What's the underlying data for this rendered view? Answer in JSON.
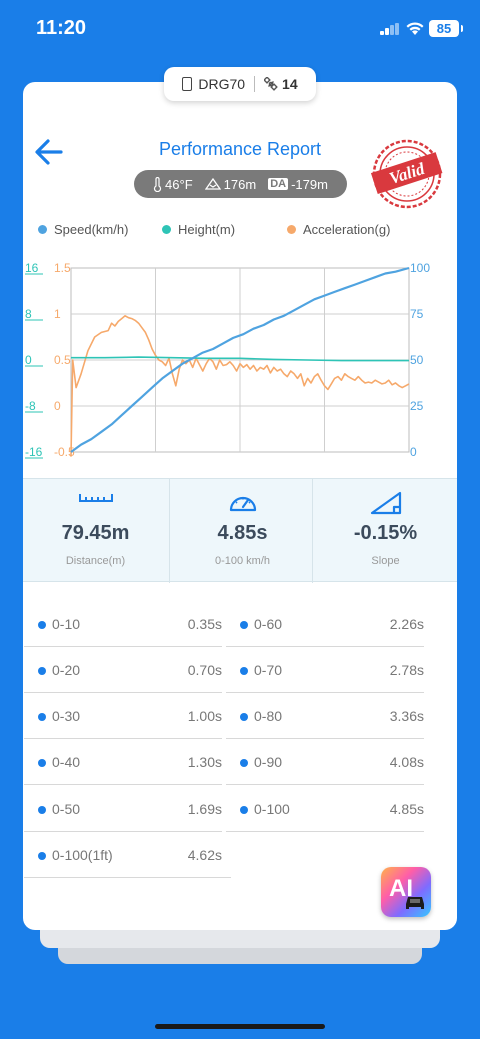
{
  "status": {
    "time": "11:20",
    "battery": "85"
  },
  "device": {
    "name": "DRG70",
    "satellites": "14"
  },
  "header": {
    "title": "Performance Report",
    "stamp_text": "Valid"
  },
  "conditions": {
    "temperature": "46°F",
    "elevation": "176m",
    "da_label": "DA",
    "density_altitude": "-179m"
  },
  "legend": [
    {
      "label": "Speed(km/h)",
      "color": "#4fa3e0"
    },
    {
      "label": "Height(m)",
      "color": "#2ec4b6"
    },
    {
      "label": "Acceleration(g)",
      "color": "#f6a96b"
    }
  ],
  "chart_data": {
    "type": "line",
    "x_grid_divisions": 4,
    "height_axis": {
      "ticks": [
        "16",
        "8",
        "0",
        "-8",
        "-16"
      ],
      "range": [
        -16,
        16
      ],
      "color": "#2ec4b6"
    },
    "accel_axis": {
      "ticks": [
        "1.5",
        "1",
        "0.5",
        "0",
        "-0.5"
      ],
      "range": [
        -0.5,
        1.5
      ],
      "color": "#f6a96b"
    },
    "speed_axis": {
      "ticks": [
        "100",
        "75",
        "50",
        "25",
        "0"
      ],
      "range": [
        0,
        100
      ],
      "color": "#4fa3e0"
    },
    "x_range": [
      0,
      100
    ],
    "series": [
      {
        "name": "Speed(km/h)",
        "axis": "speed",
        "color": "#4fa3e0",
        "points": [
          [
            0,
            0
          ],
          [
            3,
            4
          ],
          [
            6,
            7
          ],
          [
            9,
            11
          ],
          [
            12,
            15
          ],
          [
            15,
            20
          ],
          [
            18,
            25
          ],
          [
            21,
            30
          ],
          [
            24,
            35
          ],
          [
            27,
            40
          ],
          [
            30,
            44
          ],
          [
            33,
            48
          ],
          [
            36,
            51
          ],
          [
            39,
            54
          ],
          [
            42,
            56
          ],
          [
            45,
            59
          ],
          [
            48,
            62
          ],
          [
            51,
            64
          ],
          [
            54,
            67
          ],
          [
            57,
            69
          ],
          [
            60,
            72
          ],
          [
            63,
            74
          ],
          [
            66,
            77
          ],
          [
            69,
            80
          ],
          [
            72,
            83
          ],
          [
            75,
            85
          ],
          [
            78,
            87
          ],
          [
            81,
            89
          ],
          [
            84,
            91
          ],
          [
            87,
            93
          ],
          [
            90,
            95
          ],
          [
            93,
            97
          ],
          [
            96,
            98
          ],
          [
            100,
            100
          ]
        ]
      },
      {
        "name": "Height(m)",
        "axis": "height",
        "color": "#2ec4b6",
        "points": [
          [
            0,
            0.4
          ],
          [
            10,
            0.4
          ],
          [
            20,
            0.5
          ],
          [
            30,
            0.4
          ],
          [
            40,
            0.3
          ],
          [
            50,
            0.3
          ],
          [
            60,
            0.1
          ],
          [
            70,
            0
          ],
          [
            80,
            -0.1
          ],
          [
            90,
            -0.1
          ],
          [
            100,
            -0.1
          ]
        ]
      },
      {
        "name": "Acceleration(g)",
        "axis": "accel",
        "color": "#f6a96b",
        "points": [
          [
            0,
            -0.55
          ],
          [
            0.5,
            0.5
          ],
          [
            1.5,
            0.2
          ],
          [
            3,
            0.35
          ],
          [
            5,
            0.6
          ],
          [
            7,
            0.75
          ],
          [
            9,
            0.8
          ],
          [
            11,
            0.82
          ],
          [
            12,
            0.9
          ],
          [
            13,
            0.87
          ],
          [
            14,
            0.92
          ],
          [
            15,
            0.95
          ],
          [
            16,
            0.98
          ],
          [
            17,
            0.96
          ],
          [
            18,
            0.95
          ],
          [
            19,
            0.93
          ],
          [
            20,
            0.9
          ],
          [
            21,
            0.85
          ],
          [
            22,
            0.8
          ],
          [
            23,
            0.72
          ],
          [
            24,
            0.62
          ],
          [
            25,
            0.55
          ],
          [
            26,
            0.5
          ],
          [
            27,
            0.48
          ],
          [
            28,
            0.44
          ],
          [
            29,
            0.52
          ],
          [
            30,
            0.35
          ],
          [
            31,
            0.22
          ],
          [
            32,
            0.4
          ],
          [
            33,
            0.5
          ],
          [
            34,
            0.46
          ],
          [
            35,
            0.5
          ],
          [
            36,
            0.42
          ],
          [
            37,
            0.52
          ],
          [
            38,
            0.45
          ],
          [
            39,
            0.38
          ],
          [
            40,
            0.46
          ],
          [
            41,
            0.52
          ],
          [
            42,
            0.48
          ],
          [
            43,
            0.4
          ],
          [
            44,
            0.5
          ],
          [
            45,
            0.44
          ],
          [
            46,
            0.45
          ],
          [
            47,
            0.48
          ],
          [
            48,
            0.44
          ],
          [
            49,
            0.38
          ],
          [
            50,
            0.46
          ],
          [
            51,
            0.42
          ],
          [
            52,
            0.45
          ],
          [
            53,
            0.4
          ],
          [
            54,
            0.44
          ],
          [
            55,
            0.38
          ],
          [
            56,
            0.42
          ],
          [
            57,
            0.4
          ],
          [
            58,
            0.44
          ],
          [
            59,
            0.36
          ],
          [
            60,
            0.42
          ],
          [
            61,
            0.38
          ],
          [
            62,
            0.4
          ],
          [
            63,
            0.35
          ],
          [
            64,
            0.32
          ],
          [
            65,
            0.38
          ],
          [
            66,
            0.35
          ],
          [
            67,
            0.3
          ],
          [
            68,
            0.35
          ],
          [
            69,
            0.22
          ],
          [
            70,
            0.3
          ],
          [
            71,
            0.25
          ],
          [
            72,
            0.32
          ],
          [
            73,
            0.35
          ],
          [
            74,
            0.28
          ],
          [
            75,
            0.22
          ],
          [
            76,
            0.18
          ],
          [
            77,
            0.24
          ],
          [
            78,
            0.3
          ],
          [
            79,
            0.32
          ],
          [
            80,
            0.28
          ],
          [
            81,
            0.35
          ],
          [
            82,
            0.32
          ],
          [
            83,
            0.3
          ],
          [
            84,
            0.28
          ],
          [
            85,
            0.32
          ],
          [
            86,
            0.28
          ],
          [
            87,
            0.25
          ],
          [
            88,
            0.26
          ],
          [
            89,
            0.25
          ],
          [
            90,
            0.28
          ],
          [
            91,
            0.26
          ],
          [
            92,
            0.24
          ],
          [
            93,
            0.25
          ],
          [
            94,
            0.28
          ],
          [
            95,
            0.23
          ],
          [
            96,
            0.25
          ],
          [
            97,
            0.22
          ],
          [
            98,
            0.2
          ],
          [
            99,
            0.22
          ],
          [
            100,
            0.24
          ]
        ]
      }
    ]
  },
  "stats": [
    {
      "value": "79.45m",
      "label": "Distance(m)"
    },
    {
      "value": "4.85s",
      "label": "0-100 km/h"
    },
    {
      "value": "-0.15%",
      "label": "Slope"
    }
  ],
  "intervals_left": [
    {
      "name": "0-10",
      "time": "0.35s"
    },
    {
      "name": "0-20",
      "time": "0.70s"
    },
    {
      "name": "0-30",
      "time": "1.00s"
    },
    {
      "name": "0-40",
      "time": "1.30s"
    },
    {
      "name": "0-50",
      "time": "1.69s"
    },
    {
      "name": "0-100(1ft)",
      "time": "4.62s"
    }
  ],
  "intervals_right": [
    {
      "name": "0-60",
      "time": "2.26s"
    },
    {
      "name": "0-70",
      "time": "2.78s"
    },
    {
      "name": "0-80",
      "time": "3.36s"
    },
    {
      "name": "0-90",
      "time": "4.08s"
    },
    {
      "name": "0-100",
      "time": "4.85s"
    }
  ],
  "ai_button": {
    "label": "AI"
  }
}
